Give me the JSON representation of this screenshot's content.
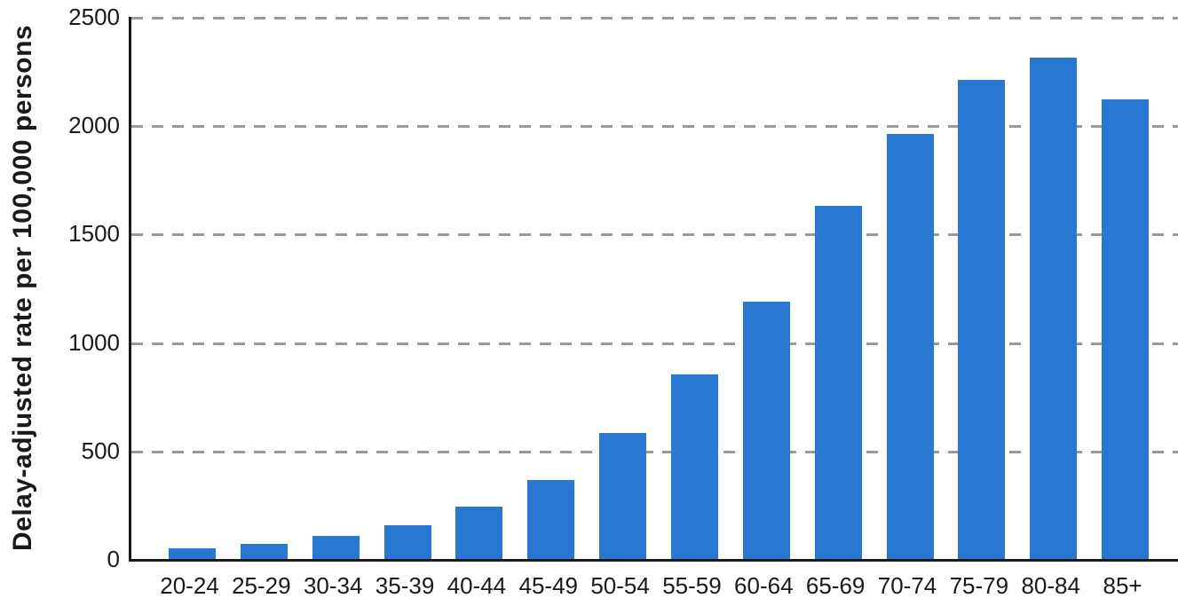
{
  "chart_data": {
    "type": "bar",
    "title": "",
    "xlabel": "",
    "ylabel": "Delay-adjusted rate per 100,000 persons",
    "categories": [
      "20-24",
      "25-29",
      "30-34",
      "35-39",
      "40-44",
      "45-49",
      "50-54",
      "55-59",
      "60-64",
      "65-69",
      "70-74",
      "75-79",
      "80-84",
      "85+"
    ],
    "values": [
      50,
      70,
      105,
      155,
      240,
      365,
      580,
      850,
      1185,
      1630,
      1960,
      2210,
      2310,
      2120
    ],
    "ylim": [
      0,
      2500
    ],
    "yticks": [
      0,
      500,
      1000,
      1500,
      2000,
      2500
    ],
    "grid": "horizontal-dashed",
    "legend": "none",
    "colors": {
      "bar": "#2878d2",
      "axis": "#1a1a1a",
      "gridline": "#999999",
      "text": "#1a1a1a"
    }
  }
}
